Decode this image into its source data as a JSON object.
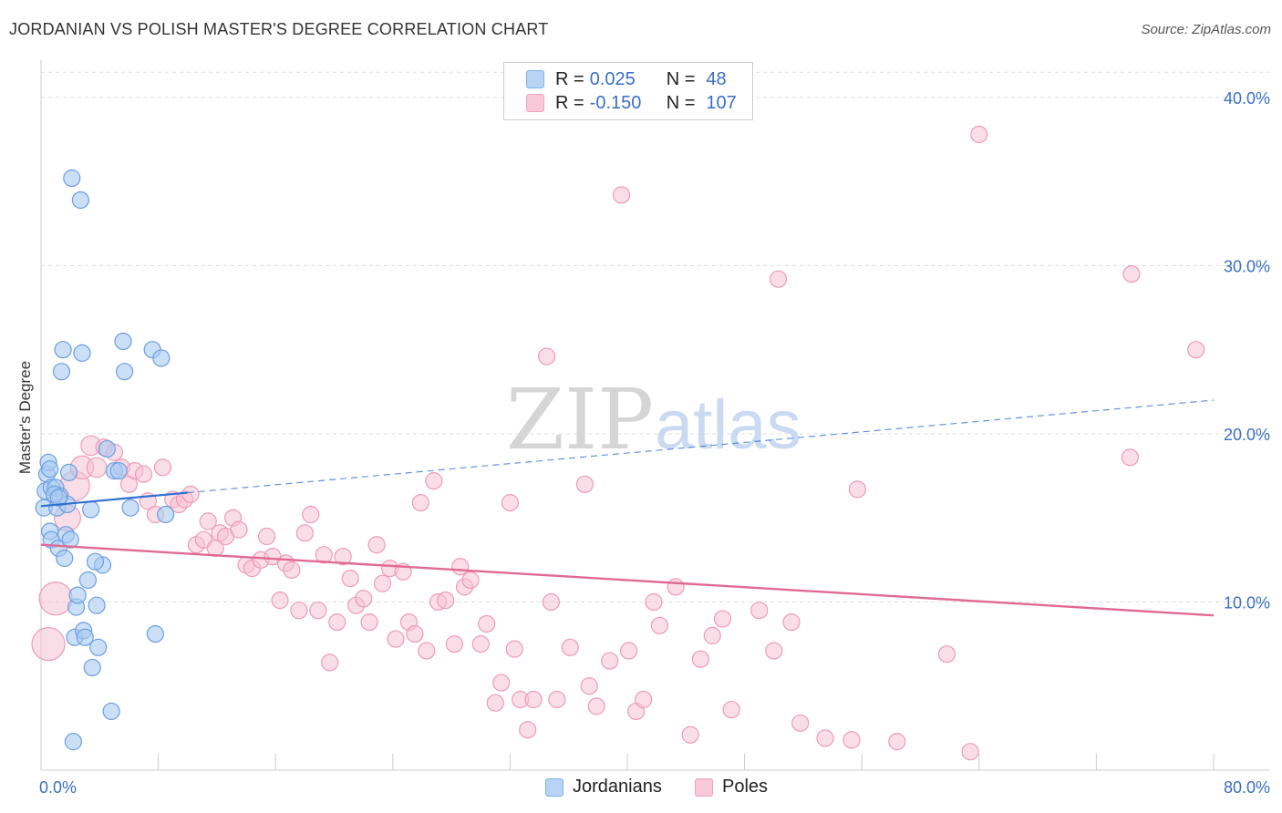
{
  "title": "JORDANIAN VS POLISH MASTER'S DEGREE CORRELATION CHART",
  "source": "Source: ZipAtlas.com",
  "watermark": {
    "zip": "ZIP",
    "atlas": "atlas"
  },
  "legend": {
    "rows": [
      {
        "r_label": "R =",
        "r_value": "0.025",
        "n_label": "N =",
        "n_value": "48",
        "color": "#7fb0e8",
        "fill": "#b8d4f4"
      },
      {
        "r_label": "R =",
        "r_value": "-0.150",
        "n_label": "N =",
        "n_value": "107",
        "color": "#f0a3bd",
        "fill": "#f8c9d8"
      }
    ]
  },
  "bottom_legend": {
    "jordanians": "Jordanians",
    "poles": "Poles"
  },
  "colors": {
    "blue_stroke": "#6b9fe0",
    "blue_fill": "#a9c9f2",
    "blue_line": "#2f6fd1",
    "pink_stroke": "#ee9bb7",
    "pink_fill": "#f6c3d3",
    "pink_line": "#e06a95",
    "axis_label": "#3a6fc4",
    "grid": "#dddddd"
  },
  "chart_data": {
    "type": "scatter",
    "title": "JORDANIAN VS POLISH MASTER'S DEGREE CORRELATION CHART",
    "xlabel": "",
    "ylabel": "Master's Degree",
    "xlim": [
      0,
      80
    ],
    "ylim": [
      0,
      42
    ],
    "x_tick_labels": [
      "0.0%",
      "80.0%"
    ],
    "y_ticks": [
      10,
      20,
      30,
      40
    ],
    "y_tick_labels": [
      "10.0%",
      "20.0%",
      "30.0%",
      "40.0%"
    ],
    "series": [
      {
        "name": "Jordanians",
        "r": 0.025,
        "n": 48,
        "trend_solid": {
          "x": [
            0,
            10
          ],
          "y": [
            15.7,
            16.5
          ]
        },
        "trend_dashed": {
          "x": [
            10,
            80
          ],
          "y": [
            16.5,
            22.0
          ]
        },
        "points": [
          [
            0.2,
            15.6,
            1
          ],
          [
            0.3,
            16.6,
            1
          ],
          [
            0.4,
            17.6,
            1
          ],
          [
            0.5,
            18.3,
            1
          ],
          [
            0.6,
            17.9,
            1
          ],
          [
            0.7,
            16.8,
            1
          ],
          [
            0.6,
            14.2,
            1
          ],
          [
            0.7,
            13.7,
            1
          ],
          [
            1.0,
            16.8,
            1
          ],
          [
            1.1,
            15.6,
            1
          ],
          [
            1.2,
            13.2,
            1
          ],
          [
            1.3,
            16.3,
            1
          ],
          [
            1.4,
            23.7,
            1
          ],
          [
            1.5,
            25.0,
            1
          ],
          [
            1.6,
            12.6,
            1
          ],
          [
            1.7,
            14.0,
            1
          ],
          [
            1.8,
            15.8,
            1
          ],
          [
            1.9,
            17.7,
            1
          ],
          [
            2.0,
            13.7,
            1
          ],
          [
            2.1,
            35.2,
            1
          ],
          [
            2.2,
            1.7,
            1
          ],
          [
            2.3,
            7.9,
            1
          ],
          [
            2.4,
            9.7,
            1
          ],
          [
            2.5,
            10.4,
            1
          ],
          [
            2.7,
            33.9,
            1
          ],
          [
            2.8,
            24.8,
            1
          ],
          [
            2.9,
            8.3,
            1
          ],
          [
            3.0,
            7.9,
            1
          ],
          [
            3.2,
            11.3,
            1
          ],
          [
            3.4,
            15.5,
            1
          ],
          [
            3.5,
            6.1,
            1
          ],
          [
            3.8,
            9.8,
            1
          ],
          [
            3.9,
            7.3,
            1
          ],
          [
            4.2,
            12.2,
            1
          ],
          [
            4.5,
            19.1,
            1
          ],
          [
            4.8,
            3.5,
            1
          ],
          [
            5.0,
            17.8,
            1
          ],
          [
            5.3,
            17.8,
            1
          ],
          [
            5.6,
            25.5,
            1
          ],
          [
            5.7,
            23.7,
            1
          ],
          [
            6.1,
            15.6,
            1
          ],
          [
            7.6,
            25.0,
            1
          ],
          [
            7.8,
            8.1,
            1
          ],
          [
            8.2,
            24.5,
            1
          ],
          [
            8.5,
            15.2,
            1
          ],
          [
            0.9,
            16.4,
            1
          ],
          [
            1.2,
            16.2,
            1
          ],
          [
            3.7,
            12.4,
            0
          ]
        ]
      },
      {
        "name": "Poles",
        "r": -0.15,
        "n": 107,
        "trend": {
          "x": [
            0,
            80
          ],
          "y": [
            13.4,
            9.2
          ]
        },
        "points": [
          [
            0.5,
            7.5,
            2.0
          ],
          [
            1.0,
            10.2,
            2.0
          ],
          [
            1.8,
            15.0,
            1.6
          ],
          [
            2.3,
            16.9,
            1.8
          ],
          [
            2.8,
            18.0,
            1.4
          ],
          [
            3.4,
            19.3,
            1.2
          ],
          [
            3.8,
            18.0,
            1.2
          ],
          [
            4.3,
            19.2,
            1.0
          ],
          [
            5.0,
            18.9,
            1
          ],
          [
            5.5,
            18.0,
            1
          ],
          [
            6.0,
            17.0,
            1
          ],
          [
            6.4,
            17.8,
            1
          ],
          [
            7.0,
            17.6,
            1
          ],
          [
            7.3,
            16.0,
            1
          ],
          [
            7.8,
            15.2,
            1
          ],
          [
            8.3,
            18.0,
            1
          ],
          [
            9.0,
            16.1,
            1
          ],
          [
            9.4,
            15.8,
            1
          ],
          [
            9.8,
            16.1,
            1
          ],
          [
            10.2,
            16.4,
            1
          ],
          [
            10.6,
            13.4,
            1
          ],
          [
            11.1,
            13.7,
            1
          ],
          [
            11.4,
            14.8,
            1
          ],
          [
            11.9,
            13.2,
            1
          ],
          [
            12.2,
            14.1,
            1
          ],
          [
            12.6,
            13.9,
            1
          ],
          [
            13.1,
            15.0,
            1
          ],
          [
            13.5,
            14.3,
            1
          ],
          [
            14.0,
            12.2,
            1
          ],
          [
            14.4,
            12.0,
            1
          ],
          [
            15.0,
            12.5,
            1
          ],
          [
            15.4,
            13.9,
            1
          ],
          [
            15.8,
            12.7,
            1
          ],
          [
            16.3,
            10.1,
            1
          ],
          [
            16.7,
            12.3,
            1
          ],
          [
            17.1,
            11.9,
            1
          ],
          [
            17.6,
            9.5,
            1
          ],
          [
            18.0,
            14.1,
            1
          ],
          [
            18.4,
            15.2,
            1
          ],
          [
            18.9,
            9.5,
            1
          ],
          [
            19.3,
            12.8,
            1
          ],
          [
            19.7,
            6.4,
            1
          ],
          [
            20.2,
            8.8,
            1
          ],
          [
            20.6,
            12.7,
            1
          ],
          [
            21.1,
            11.4,
            1
          ],
          [
            21.5,
            9.8,
            1
          ],
          [
            22.0,
            10.2,
            1
          ],
          [
            22.4,
            8.8,
            1
          ],
          [
            22.9,
            13.4,
            1
          ],
          [
            23.3,
            11.1,
            1
          ],
          [
            23.8,
            12.0,
            1
          ],
          [
            24.2,
            7.8,
            1
          ],
          [
            24.7,
            11.8,
            1
          ],
          [
            25.1,
            8.8,
            1
          ],
          [
            25.5,
            8.1,
            1
          ],
          [
            25.9,
            15.9,
            1
          ],
          [
            26.3,
            7.1,
            1
          ],
          [
            26.8,
            17.2,
            1
          ],
          [
            27.1,
            10.0,
            1
          ],
          [
            27.6,
            10.1,
            1
          ],
          [
            28.2,
            7.5,
            1
          ],
          [
            28.6,
            12.1,
            1
          ],
          [
            28.9,
            10.9,
            1
          ],
          [
            29.3,
            11.3,
            1
          ],
          [
            30.0,
            7.5,
            1
          ],
          [
            30.4,
            8.7,
            1
          ],
          [
            31.0,
            4.0,
            1
          ],
          [
            31.4,
            5.2,
            1
          ],
          [
            32.0,
            15.9,
            1
          ],
          [
            32.3,
            7.2,
            1
          ],
          [
            32.7,
            4.2,
            1
          ],
          [
            33.2,
            2.4,
            1
          ],
          [
            33.6,
            4.2,
            1
          ],
          [
            34.5,
            24.6,
            1
          ],
          [
            34.8,
            10.0,
            1
          ],
          [
            35.2,
            4.2,
            1
          ],
          [
            36.1,
            7.3,
            1
          ],
          [
            37.1,
            17.0,
            1
          ],
          [
            37.4,
            5.0,
            1
          ],
          [
            37.9,
            3.8,
            1
          ],
          [
            38.8,
            6.5,
            1
          ],
          [
            39.6,
            34.2,
            1
          ],
          [
            40.1,
            7.1,
            1
          ],
          [
            40.6,
            3.5,
            1
          ],
          [
            41.1,
            4.2,
            1
          ],
          [
            41.8,
            10.0,
            1
          ],
          [
            42.2,
            8.6,
            1
          ],
          [
            43.3,
            10.9,
            1
          ],
          [
            44.3,
            2.1,
            1
          ],
          [
            45.0,
            6.6,
            1
          ],
          [
            45.8,
            8.0,
            1
          ],
          [
            46.5,
            9.0,
            1
          ],
          [
            47.1,
            3.6,
            1
          ],
          [
            49.0,
            9.5,
            1
          ],
          [
            50.0,
            7.1,
            1
          ],
          [
            50.3,
            29.2,
            1
          ],
          [
            51.2,
            8.8,
            1
          ],
          [
            51.8,
            2.8,
            1
          ],
          [
            53.5,
            1.9,
            1
          ],
          [
            55.3,
            1.8,
            1
          ],
          [
            55.7,
            16.7,
            1
          ],
          [
            58.4,
            1.7,
            1
          ],
          [
            61.8,
            6.9,
            1
          ],
          [
            63.4,
            1.1,
            1
          ],
          [
            64.0,
            37.8,
            1
          ],
          [
            74.3,
            18.6,
            1
          ],
          [
            74.4,
            29.5,
            1
          ],
          [
            78.8,
            25.0,
            1
          ]
        ]
      }
    ]
  }
}
